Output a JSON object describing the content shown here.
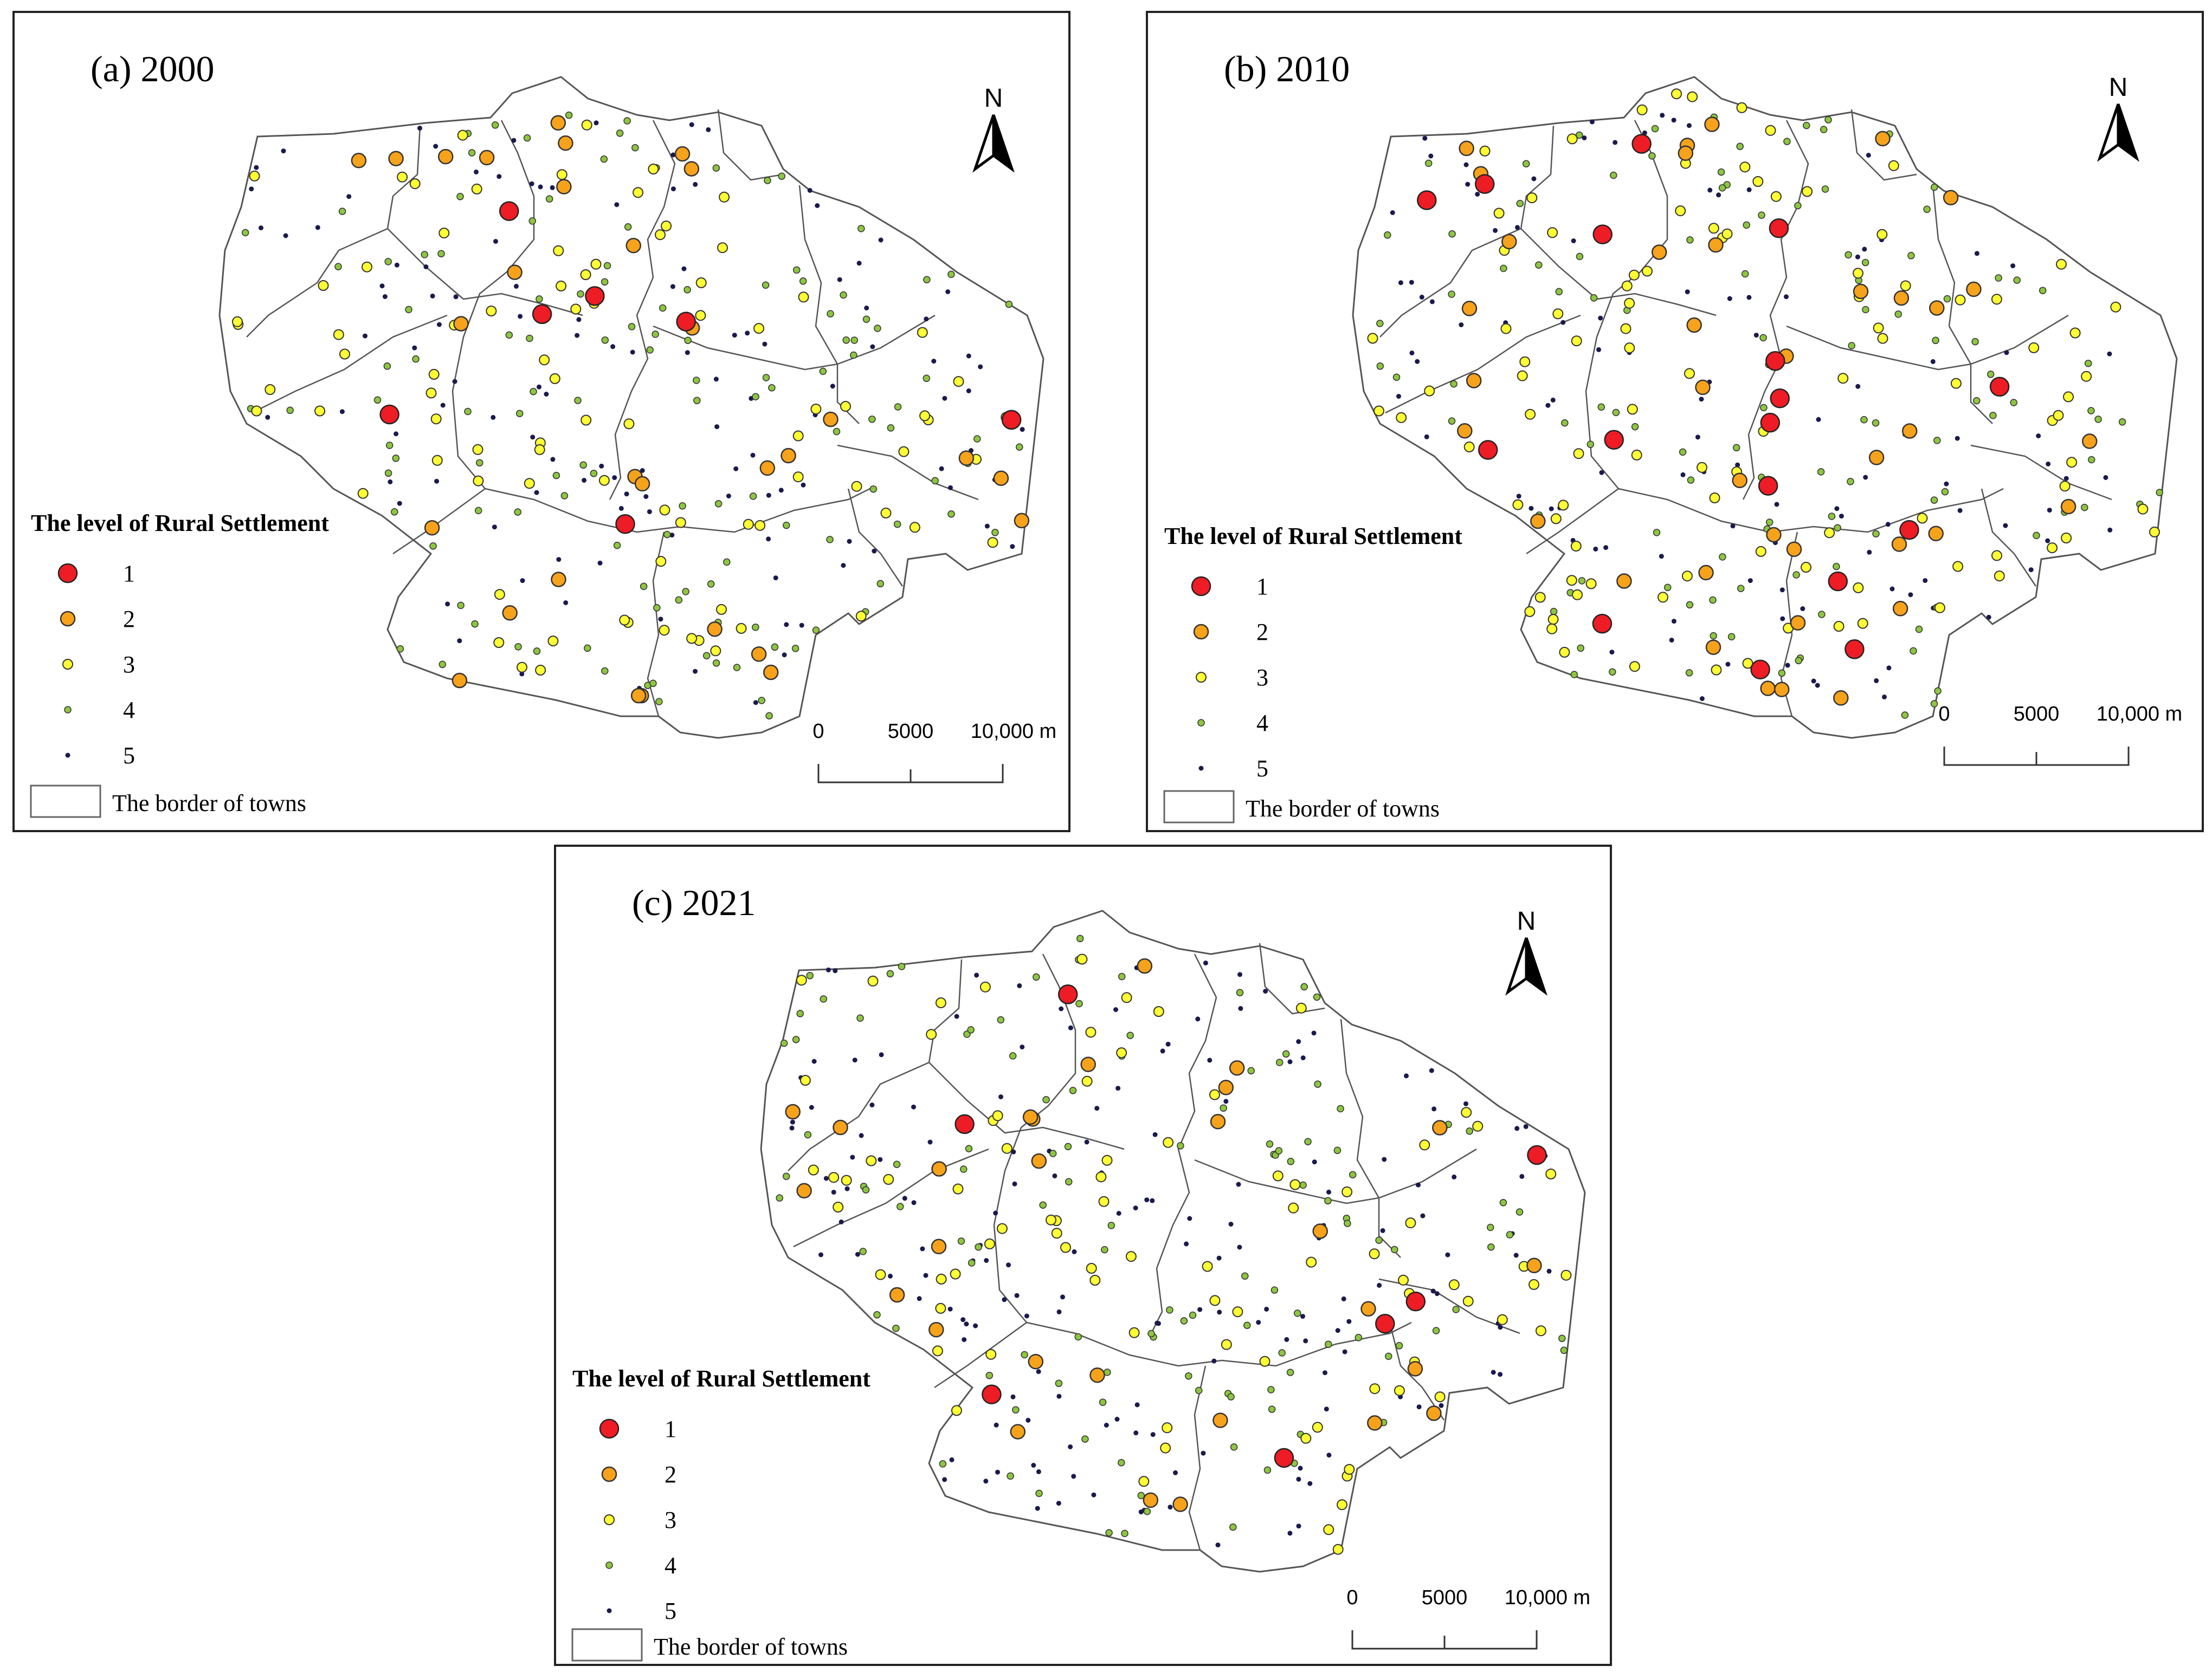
{
  "panels": [
    {
      "id": "a",
      "title": "(a) 2000",
      "seed": 11,
      "counts": {
        "1": 7,
        "2": 30,
        "3": 85,
        "4": 130,
        "5": 120
      }
    },
    {
      "id": "b",
      "title": "(b) 2010",
      "seed": 23,
      "counts": {
        "1": 17,
        "2": 38,
        "3": 100,
        "4": 120,
        "5": 110
      }
    },
    {
      "id": "c",
      "title": "(c) 2021",
      "seed": 37,
      "counts": {
        "1": 7,
        "2": 28,
        "3": 85,
        "4": 120,
        "5": 170
      }
    }
  ],
  "legend": {
    "title": "The level of Rural Settlement",
    "levels": [
      "1",
      "2",
      "3",
      "4",
      "5"
    ],
    "border_label": "The border of towns"
  },
  "north_label": "N",
  "scale_bar": {
    "labels": [
      "0",
      "5000",
      "10,000 m"
    ]
  },
  "colors": {
    "level_1": "#ee1c24",
    "level_2": "#f7a21b",
    "level_3": "#ffff33",
    "level_4": "#8dc63f",
    "level_5": "#1a1a4e",
    "border": "#555555",
    "frame": "#222222"
  }
}
